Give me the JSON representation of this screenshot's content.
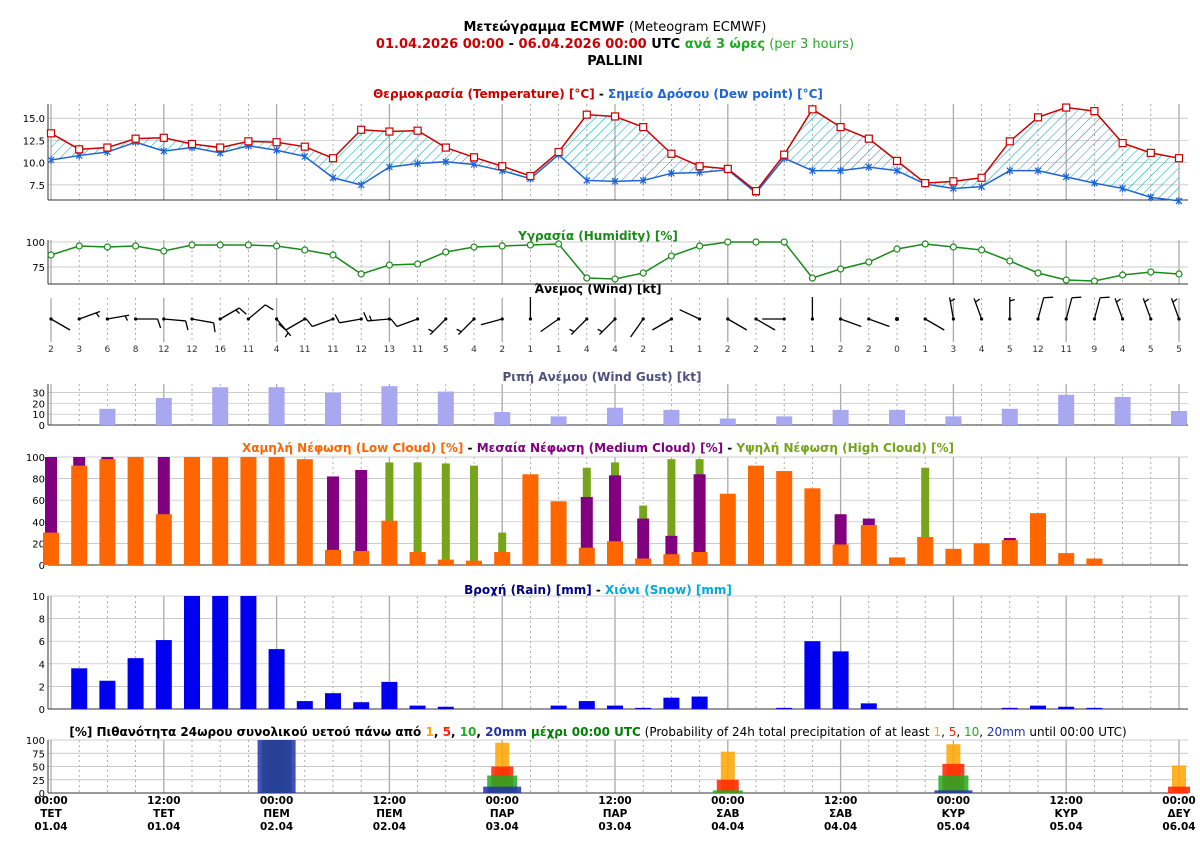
{
  "header": {
    "line1": {
      "bold": "Μετεώγραμμα ECMWF",
      "normal": " (Meteogram ECMWF)"
    },
    "line2": {
      "from": "01.04.2026 00:00",
      "sep": " - ",
      "to": "06.04.2026 00:00",
      "utc": " UTC ",
      "step": "ανά 3 ώρες",
      "step_en": " (per 3 hours)"
    },
    "location": "PALLINI"
  },
  "colors": {
    "temperature": "#cc0000",
    "dewpoint": "#1e64d2",
    "humidity": "#1a8a1a",
    "wind": "#000000",
    "gust": "#a8a8f0",
    "low_cloud": "#ff6600",
    "medium_cloud": "#800080",
    "high_cloud": "#77a51a",
    "rain": "#0000ee",
    "snow": "#00aadd",
    "prob1": "#ffa500",
    "prob5": "#ff2200",
    "prob10": "#22aa22",
    "prob20": "#2233aa",
    "grid": "#888888"
  },
  "chart_data": [
    {
      "type": "line",
      "panel": "temperature",
      "title_parts": [
        "Θερμοκρασία (Temperature) [°C]",
        " - ",
        "Σημείο Δρόσου (Dew point) [°C]"
      ],
      "y_ticks": [
        "15.0",
        "12.5",
        "10.0",
        "7.5"
      ],
      "ylim": [
        5.8,
        16.6
      ],
      "series": [
        {
          "name": "Θερμοκρασία (Temperature) [°C]",
          "values": [
            13.3,
            11.5,
            11.7,
            12.7,
            12.8,
            12.1,
            11.7,
            12.4,
            12.3,
            11.8,
            10.5,
            13.7,
            13.5,
            13.6,
            11.7,
            10.6,
            9.6,
            8.5,
            11.2,
            15.4,
            15.2,
            14.0,
            11.0,
            9.6,
            9.3,
            6.8,
            10.9,
            16.0,
            14.0,
            12.7,
            10.2,
            7.7,
            7.9,
            8.3,
            12.4,
            15.1,
            16.2,
            15.8,
            12.2,
            11.1,
            10.5
          ]
        },
        {
          "name": "Σημείο Δρόσου (Dew point) [°C]",
          "values": [
            10.3,
            10.8,
            11.2,
            12.3,
            11.3,
            11.7,
            11.1,
            11.9,
            11.4,
            10.7,
            8.3,
            7.5,
            9.5,
            9.9,
            10.1,
            9.8,
            9.1,
            8.2,
            10.9,
            8.0,
            7.9,
            8.0,
            8.8,
            8.9,
            9.2,
            6.6,
            10.5,
            9.1,
            9.1,
            9.5,
            9.1,
            7.6,
            7.1,
            7.3,
            9.1,
            9.1,
            8.4,
            7.7,
            7.1,
            6.1,
            5.7
          ]
        }
      ]
    },
    {
      "type": "line",
      "panel": "humidity",
      "title": "Υγρασία (Humidity) [%]",
      "y_ticks": [
        "100",
        "75"
      ],
      "ylim": [
        58,
        102
      ],
      "series": [
        {
          "name": "Υγρασία (Humidity) [%]",
          "values": [
            87,
            96,
            95,
            96,
            91,
            97,
            97,
            97,
            96,
            92,
            87,
            68,
            77,
            78,
            90,
            95,
            96,
            97,
            98,
            64,
            63,
            69,
            86,
            96,
            100,
            100,
            100,
            64,
            73,
            80,
            93,
            98,
            95,
            92,
            81,
            69,
            62,
            61,
            67,
            70,
            68
          ]
        }
      ]
    },
    {
      "type": "scatter",
      "panel": "wind",
      "title": "Άνεμος (Wind) [kt]",
      "speeds": [
        2,
        3,
        6,
        8,
        12,
        12,
        16,
        11,
        4,
        11,
        11,
        12,
        13,
        11,
        5,
        4,
        2,
        1,
        1,
        4,
        4,
        2,
        1,
        1,
        2,
        2,
        2,
        1,
        2,
        2,
        0,
        1,
        3,
        4,
        5,
        12,
        11,
        9,
        4,
        5,
        5
      ],
      "directions_deg": [
        120,
        70,
        80,
        90,
        95,
        100,
        60,
        50,
        140,
        240,
        250,
        260,
        265,
        250,
        225,
        225,
        255,
        0,
        235,
        225,
        225,
        215,
        240,
        295,
        120,
        120,
        270,
        0,
        110,
        110,
        0,
        120,
        350,
        340,
        0,
        15,
        15,
        15,
        340,
        340,
        340
      ]
    },
    {
      "type": "bar",
      "panel": "wind_gust",
      "title": "Ριπή Ανέμου (Wind Gust) [kt]",
      "y_ticks": [
        "30",
        "20",
        "10",
        "0"
      ],
      "ylim": [
        0,
        38
      ],
      "series": [
        {
          "name": "Ριπή Ανέμου (Wind Gust) [kt]",
          "values": [
            null,
            null,
            15,
            null,
            25,
            null,
            35,
            null,
            35,
            null,
            30,
            null,
            36,
            null,
            31,
            null,
            12,
            null,
            8,
            null,
            16,
            null,
            14,
            null,
            6,
            null,
            8,
            null,
            14,
            null,
            14,
            null,
            8,
            null,
            15,
            null,
            28,
            null,
            26,
            null,
            13
          ]
        }
      ]
    },
    {
      "type": "bar",
      "panel": "cloud",
      "title_parts": [
        "Χαμηλή Νέφωση (Low Cloud) [%]",
        " - ",
        "Μεσαία Νέφωση (Medium Cloud) [%]",
        " - ",
        "Υψηλή Νέφωση (High Cloud) [%]"
      ],
      "y_ticks": [
        "100",
        "80",
        "60",
        "40",
        "20",
        "0"
      ],
      "ylim": [
        0,
        100
      ],
      "series": [
        {
          "name": "Υψηλή Νέφωση (High Cloud) [%]",
          "values": [
            0,
            0,
            0,
            0,
            0,
            0,
            0,
            0,
            0,
            0,
            0,
            0,
            95,
            95,
            94,
            92,
            30,
            0,
            0,
            90,
            95,
            55,
            98,
            98,
            0,
            0,
            0,
            0,
            45,
            0,
            0,
            90,
            0,
            0,
            0,
            0,
            0,
            0,
            0,
            0,
            0
          ]
        },
        {
          "name": "Μεσαία Νέφωση (Medium Cloud) [%]",
          "values": [
            100,
            100,
            100,
            100,
            100,
            0,
            0,
            0,
            0,
            0,
            82,
            88,
            0,
            0,
            0,
            0,
            0,
            0,
            0,
            63,
            83,
            43,
            27,
            84,
            0,
            0,
            0,
            0,
            47,
            43,
            0,
            25,
            0,
            0,
            25,
            0,
            0,
            0,
            0,
            0,
            0
          ]
        },
        {
          "name": "Χαμηλή Νέφωση (Low Cloud) [%]",
          "values": [
            30,
            92,
            98,
            100,
            47,
            100,
            100,
            100,
            100,
            98,
            14,
            13,
            41,
            12,
            5,
            4,
            12,
            84,
            59,
            16,
            22,
            6,
            10,
            12,
            66,
            92,
            87,
            71,
            19,
            37,
            7,
            26,
            15,
            20,
            23,
            48,
            11,
            6,
            0,
            0,
            0
          ]
        }
      ]
    },
    {
      "type": "bar",
      "panel": "precipitation",
      "title_parts": [
        "Βροχή (Rain) [mm]",
        " - ",
        "Χιόνι (Snow) [mm]"
      ],
      "y_ticks": [
        "10",
        "8",
        "6",
        "4",
        "2",
        "0"
      ],
      "ylim": [
        0,
        10
      ],
      "series": [
        {
          "name": "Βροχή (Rain) [mm]",
          "values": [
            3.6,
            2.5,
            4.5,
            6.1,
            10,
            10,
            10,
            5.3,
            0.7,
            1.4,
            0.6,
            2.4,
            0.3,
            0.2,
            0,
            0,
            0,
            0.3,
            0.7,
            0.3,
            0.1,
            1.0,
            1.1,
            0,
            0,
            0.1,
            6.0,
            5.1,
            0.5,
            0,
            0,
            0,
            0,
            0.1,
            0.3,
            0.2,
            0.1,
            0
          ]
        },
        {
          "name": "Χιόνι (Snow) [mm]",
          "values": []
        }
      ]
    },
    {
      "type": "bar",
      "panel": "probability",
      "title_parts": [
        "[%] Πιθανότητα 24ωρου συνολικού υετού πάνω από ",
        "1",
        ", ",
        "5",
        ", ",
        "10",
        ", ",
        "20mm",
        " μέχρι 00:00 UTC",
        " (Probability of 24h total precipitation of at least ",
        "1",
        ", ",
        "5",
        ", ",
        "10",
        ", ",
        "20mm",
        " until 00:00 UTC)"
      ],
      "y_ticks": [
        "100",
        "75",
        "50",
        "25",
        "0"
      ],
      "ylim": [
        0,
        100
      ],
      "categories": [
        "02.04",
        "03.04",
        "04.04",
        "05.04",
        "06.04"
      ],
      "series": [
        {
          "name": "1",
          "values": [
            100,
            95,
            78,
            92,
            52
          ]
        },
        {
          "name": "5",
          "values": [
            100,
            50,
            25,
            55,
            12
          ]
        },
        {
          "name": "10",
          "values": [
            100,
            33,
            5,
            33,
            0
          ]
        },
        {
          "name": "20mm",
          "values": [
            100,
            12,
            0,
            5,
            0
          ]
        }
      ]
    }
  ],
  "x_axis": {
    "wind_speed_labels": [
      "2",
      "3",
      "6",
      "8",
      "12",
      "12",
      "16",
      "11",
      "4",
      "11",
      "11",
      "12",
      "13",
      "11",
      "5",
      "4",
      "2",
      "1",
      "1",
      "4",
      "4",
      "2",
      "1",
      "1",
      "2",
      "2",
      "2",
      "1",
      "2",
      "2",
      "0",
      "1",
      "3",
      "4",
      "5",
      "12",
      "11",
      "9",
      "4",
      "5",
      "5"
    ],
    "time_labels": [
      {
        "time": "00:00",
        "day": "ΤΕΤ",
        "date": "01.04"
      },
      {
        "time": "12:00",
        "day": "ΤΕΤ",
        "date": "01.04"
      },
      {
        "time": "00:00",
        "day": "ΠΕΜ",
        "date": "02.04"
      },
      {
        "time": "12:00",
        "day": "ΠΕΜ",
        "date": "02.04"
      },
      {
        "time": "00:00",
        "day": "ΠΑΡ",
        "date": "03.04"
      },
      {
        "time": "12:00",
        "day": "ΠΑΡ",
        "date": "03.04"
      },
      {
        "time": "00:00",
        "day": "ΣΑΒ",
        "date": "04.04"
      },
      {
        "time": "12:00",
        "day": "ΣΑΒ",
        "date": "04.04"
      },
      {
        "time": "00:00",
        "day": "ΚΥΡ",
        "date": "05.04"
      },
      {
        "time": "12:00",
        "day": "ΚΥΡ",
        "date": "05.04"
      },
      {
        "time": "00:00",
        "day": "ΔΕΥ",
        "date": "06.04"
      }
    ]
  }
}
